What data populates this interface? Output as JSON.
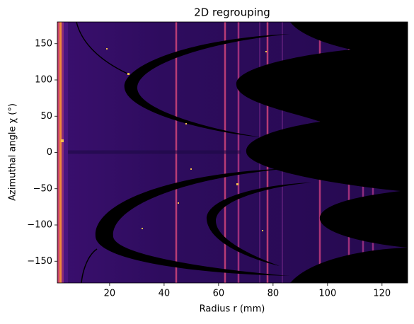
{
  "chart_data": {
    "type": "image",
    "title": "2D regrouping",
    "x_label": "Radius r (mm)",
    "y_label": "Azimuthal angle χ (°)",
    "xlim": [
      0.8,
      129.4
    ],
    "ylim": [
      -180,
      180
    ],
    "xticks": [
      20,
      40,
      60,
      80,
      100,
      120
    ],
    "yticks": [
      {
        "value": -150,
        "label": "−150"
      },
      {
        "value": -100,
        "label": "−100"
      },
      {
        "value": -50,
        "label": "−50"
      },
      0,
      50,
      100,
      150
    ]
  }
}
